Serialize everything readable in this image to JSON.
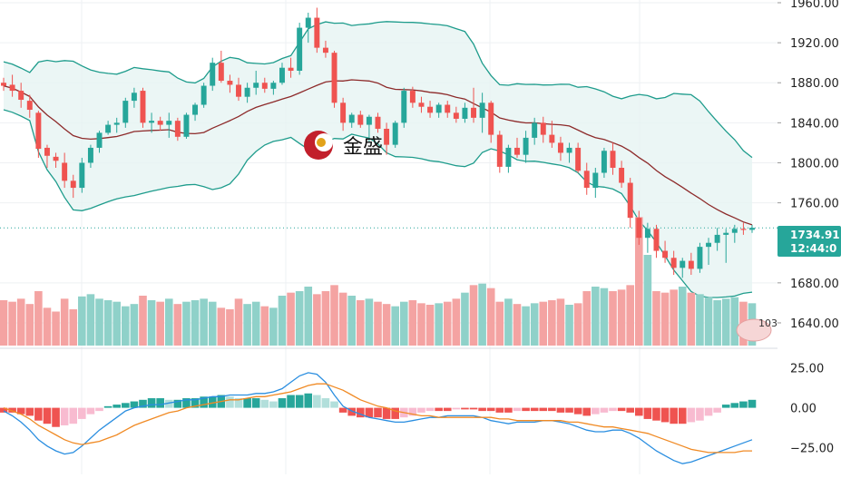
{
  "chart_data": {
    "type": "candlestick",
    "price_axis": {
      "ticks": [
        {
          "value": 1960,
          "label": "1960.00"
        },
        {
          "value": 1920,
          "label": "1920.00"
        },
        {
          "value": 1880,
          "label": "1880.00"
        },
        {
          "value": 1840,
          "label": "1840.00"
        },
        {
          "value": 1800,
          "label": "1800.00"
        },
        {
          "value": 1760,
          "label": "1760.00"
        },
        {
          "value": 1680,
          "label": "1680.00"
        },
        {
          "value": 1640,
          "label": "1640.00"
        }
      ],
      "range": [
        1630,
        1960
      ]
    },
    "current_price": {
      "value": 1734.9,
      "label": "1734.91",
      "countdown": "12:44:0"
    },
    "volume_label": "103",
    "logo": {
      "text": "金盛"
    },
    "candles": [
      [
        1880,
        1885,
        1872,
        1877
      ],
      [
        1878,
        1888,
        1866,
        1872
      ],
      [
        1872,
        1880,
        1855,
        1863
      ],
      [
        1862,
        1868,
        1845,
        1853
      ],
      [
        1850,
        1852,
        1805,
        1814
      ],
      [
        1815,
        1818,
        1795,
        1807
      ],
      [
        1806,
        1810,
        1795,
        1802
      ],
      [
        1800,
        1810,
        1775,
        1782
      ],
      [
        1782,
        1788,
        1765,
        1775
      ],
      [
        1775,
        1805,
        1770,
        1800
      ],
      [
        1800,
        1818,
        1795,
        1815
      ],
      [
        1815,
        1832,
        1810,
        1830
      ],
      [
        1830,
        1842,
        1828,
        1838
      ],
      [
        1838,
        1845,
        1830,
        1840
      ],
      [
        1840,
        1865,
        1835,
        1862
      ],
      [
        1862,
        1875,
        1855,
        1870
      ],
      [
        1872,
        1875,
        1835,
        1840
      ],
      [
        1840,
        1850,
        1830,
        1842
      ],
      [
        1842,
        1846,
        1832,
        1838
      ],
      [
        1838,
        1850,
        1825,
        1842
      ],
      [
        1842,
        1845,
        1822,
        1826
      ],
      [
        1826,
        1850,
        1824,
        1848
      ],
      [
        1848,
        1860,
        1842,
        1858
      ],
      [
        1858,
        1880,
        1855,
        1877
      ],
      [
        1877,
        1905,
        1872,
        1900
      ],
      [
        1900,
        1912,
        1880,
        1882
      ],
      [
        1882,
        1888,
        1870,
        1878
      ],
      [
        1878,
        1885,
        1862,
        1866
      ],
      [
        1866,
        1880,
        1860,
        1875
      ],
      [
        1875,
        1892,
        1868,
        1880
      ],
      [
        1880,
        1885,
        1870,
        1874
      ],
      [
        1874,
        1882,
        1868,
        1880
      ],
      [
        1880,
        1900,
        1878,
        1895
      ],
      [
        1895,
        1905,
        1885,
        1892
      ],
      [
        1892,
        1940,
        1888,
        1935
      ],
      [
        1935,
        1950,
        1920,
        1945
      ],
      [
        1945,
        1955,
        1910,
        1915
      ],
      [
        1915,
        1922,
        1905,
        1910
      ],
      [
        1910,
        1912,
        1855,
        1860
      ],
      [
        1860,
        1865,
        1832,
        1840
      ],
      [
        1840,
        1850,
        1835,
        1848
      ],
      [
        1848,
        1852,
        1835,
        1838
      ],
      [
        1838,
        1848,
        1820,
        1846
      ],
      [
        1846,
        1850,
        1830,
        1834
      ],
      [
        1834,
        1840,
        1808,
        1818
      ],
      [
        1818,
        1842,
        1815,
        1840
      ],
      [
        1840,
        1875,
        1835,
        1872
      ],
      [
        1872,
        1876,
        1855,
        1860
      ],
      [
        1860,
        1866,
        1850,
        1856
      ],
      [
        1856,
        1862,
        1845,
        1850
      ],
      [
        1850,
        1860,
        1845,
        1858
      ],
      [
        1858,
        1862,
        1845,
        1850
      ],
      [
        1850,
        1856,
        1840,
        1844
      ],
      [
        1844,
        1860,
        1840,
        1855
      ],
      [
        1855,
        1875,
        1840,
        1845
      ],
      [
        1845,
        1870,
        1830,
        1860
      ],
      [
        1860,
        1862,
        1820,
        1828
      ],
      [
        1828,
        1832,
        1790,
        1796
      ],
      [
        1796,
        1818,
        1790,
        1815
      ],
      [
        1815,
        1825,
        1805,
        1808
      ],
      [
        1808,
        1832,
        1800,
        1825
      ],
      [
        1825,
        1845,
        1818,
        1840
      ],
      [
        1840,
        1846,
        1820,
        1828
      ],
      [
        1828,
        1842,
        1815,
        1820
      ],
      [
        1820,
        1826,
        1802,
        1810
      ],
      [
        1810,
        1820,
        1800,
        1815
      ],
      [
        1815,
        1820,
        1790,
        1792
      ],
      [
        1792,
        1800,
        1768,
        1775
      ],
      [
        1775,
        1795,
        1765,
        1790
      ],
      [
        1790,
        1815,
        1785,
        1812
      ],
      [
        1812,
        1820,
        1788,
        1795
      ],
      [
        1795,
        1802,
        1775,
        1780
      ],
      [
        1780,
        1785,
        1735,
        1745
      ],
      [
        1745,
        1752,
        1718,
        1725
      ],
      [
        1725,
        1740,
        1710,
        1734
      ],
      [
        1734,
        1738,
        1705,
        1712
      ],
      [
        1712,
        1722,
        1700,
        1705
      ],
      [
        1705,
        1712,
        1688,
        1695
      ],
      [
        1695,
        1705,
        1685,
        1702
      ],
      [
        1702,
        1710,
        1688,
        1694
      ],
      [
        1694,
        1720,
        1690,
        1716
      ],
      [
        1716,
        1725,
        1698,
        1720
      ],
      [
        1720,
        1735,
        1712,
        1728
      ],
      [
        1728,
        1734,
        1700,
        1730
      ],
      [
        1730,
        1738,
        1720,
        1734
      ],
      [
        1734,
        1740,
        1728,
        1733
      ],
      [
        1733,
        1738,
        1730,
        1735
      ]
    ],
    "volumes": [
      60,
      58,
      62,
      55,
      72,
      50,
      45,
      62,
      48,
      65,
      68,
      62,
      60,
      58,
      52,
      55,
      66,
      60,
      58,
      62,
      55,
      58,
      60,
      62,
      58,
      50,
      48,
      62,
      55,
      58,
      52,
      50,
      66,
      70,
      72,
      78,
      68,
      72,
      80,
      70,
      66,
      60,
      62,
      58,
      55,
      52,
      58,
      60,
      56,
      54,
      56,
      58,
      62,
      70,
      80,
      82,
      76,
      58,
      62,
      55,
      52,
      56,
      58,
      60,
      62,
      54,
      56,
      72,
      78,
      76,
      72,
      74,
      80,
      170,
      120,
      72,
      70,
      74,
      78,
      70,
      68,
      64,
      60,
      62,
      64,
      58,
      56
    ],
    "macd_hist": [
      -3,
      -3,
      -4,
      -5,
      -8,
      -10,
      -12,
      -11,
      -10,
      -7,
      -4,
      -2,
      1,
      2,
      3,
      4,
      5,
      6,
      6,
      5,
      5,
      6,
      6,
      7,
      7,
      8,
      7,
      6,
      6,
      6,
      5,
      4,
      6,
      8,
      8,
      9,
      8,
      6,
      4,
      -3,
      -5,
      -6,
      -6,
      -6,
      -7,
      -7,
      -6,
      -5,
      -3,
      -2,
      -2,
      -2,
      -1,
      -1,
      -1,
      -2,
      -2,
      -3,
      -3,
      -2,
      -2,
      -2,
      -2,
      -2,
      -3,
      -3,
      -4,
      -5,
      -4,
      -3,
      -2,
      -2,
      -3,
      -5,
      -7,
      -8,
      -9,
      -10,
      -10,
      -9,
      -8,
      -5,
      -3,
      2,
      3,
      4,
      5
    ],
    "macd_line": [
      -2,
      -5,
      -9,
      -14,
      -20,
      -24,
      -27,
      -29,
      -28,
      -24,
      -19,
      -14,
      -10,
      -6,
      -2,
      0,
      1,
      2,
      2,
      3,
      4,
      5,
      5,
      6,
      7,
      7,
      8,
      8,
      8,
      9,
      9,
      10,
      12,
      16,
      20,
      22,
      21,
      16,
      8,
      1,
      -2,
      -4,
      -6,
      -7,
      -8,
      -9,
      -9,
      -8,
      -7,
      -6,
      -6,
      -5,
      -5,
      -5,
      -5,
      -6,
      -8,
      -9,
      -10,
      -9,
      -9,
      -9,
      -8,
      -8,
      -9,
      -10,
      -12,
      -14,
      -15,
      -15,
      -14,
      -14,
      -16,
      -19,
      -23,
      -27,
      -30,
      -33,
      -35,
      -34,
      -32,
      -30,
      -28,
      -26,
      -24,
      -22,
      -20
    ],
    "signal_line": [
      0,
      -2,
      -4,
      -7,
      -11,
      -14,
      -17,
      -20,
      -22,
      -23,
      -22,
      -21,
      -19,
      -17,
      -14,
      -11,
      -9,
      -7,
      -5,
      -3,
      -2,
      0,
      1,
      2,
      3,
      4,
      5,
      5,
      6,
      7,
      7,
      8,
      9,
      10,
      12,
      14,
      15,
      15,
      13,
      11,
      8,
      5,
      3,
      1,
      0,
      -2,
      -3,
      -4,
      -5,
      -5,
      -6,
      -6,
      -6,
      -6,
      -6,
      -6,
      -6,
      -7,
      -7,
      -8,
      -8,
      -8,
      -8,
      -8,
      -8,
      -9,
      -9,
      -10,
      -11,
      -12,
      -12,
      -13,
      -14,
      -15,
      -16,
      -18,
      -20,
      -22,
      -24,
      -26,
      -27,
      -28,
      -28,
      -28,
      -28,
      -27,
      -27
    ],
    "macd_axis": {
      "ticks": [
        {
          "value": 25,
          "label": "25.00"
        },
        {
          "value": 0,
          "label": "0.00"
        },
        {
          "value": -25,
          "label": "−25.00"
        }
      ],
      "range": [
        -40,
        35
      ]
    },
    "colors": {
      "up": "#26a69a",
      "down": "#ef5350",
      "up_volume": "#8fd1c9",
      "down_volume": "#f4a3a2",
      "band": "#1e9c8c",
      "band_fill": "#e6f4f2",
      "middle": "#8d2a2a",
      "macd_line": "#2a8ee0",
      "signal_line": "#f08a24",
      "hist_up": "#26a69a",
      "hist_up_light": "#b2dfdb",
      "hist_down": "#ef5350",
      "hist_down_light": "#f8bbd0",
      "tag": "#26a69a"
    }
  }
}
